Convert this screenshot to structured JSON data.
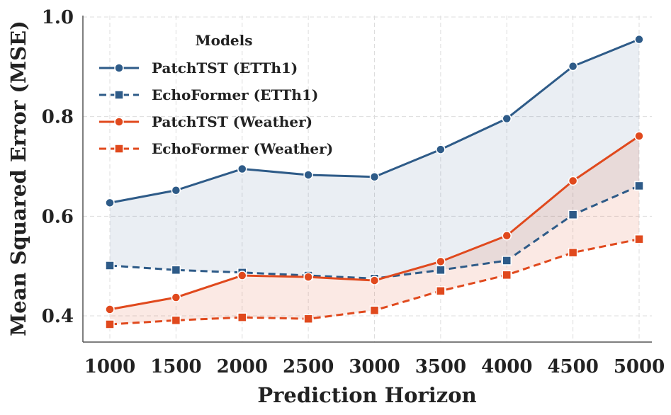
{
  "chart_data": {
    "type": "line",
    "xlabel": "Prediction Horizon",
    "ylabel": "Mean Squared Error (MSE)",
    "x": [
      1000,
      1500,
      2000,
      2500,
      3000,
      3500,
      4000,
      4500,
      5000
    ],
    "x_tick_labels": [
      "1000",
      "1500",
      "2000",
      "2500",
      "3000",
      "3500",
      "4000",
      "4500",
      "5000"
    ],
    "ylim": [
      0.35,
      1.0
    ],
    "y_ticks": [
      0.4,
      0.6,
      0.8,
      1.0
    ],
    "y_tick_labels": [
      "0.4",
      "0.6",
      "0.8",
      "1.0"
    ],
    "grid": true,
    "legend": {
      "title": "Models",
      "placement": "top-left"
    },
    "series": [
      {
        "name": "PatchTST (ETTh1)",
        "values": [
          0.627,
          0.652,
          0.695,
          0.683,
          0.679,
          0.734,
          0.796,
          0.901,
          0.955
        ],
        "color": "#2e5b88",
        "marker": "circle",
        "dashed": false
      },
      {
        "name": "EchoFormer (ETTh1)",
        "values": [
          0.501,
          0.492,
          0.487,
          0.481,
          0.475,
          0.492,
          0.511,
          0.603,
          0.661
        ],
        "color": "#2e5b88",
        "marker": "square",
        "dashed": true
      },
      {
        "name": "PatchTST (Weather)",
        "values": [
          0.413,
          0.437,
          0.481,
          0.478,
          0.471,
          0.509,
          0.561,
          0.671,
          0.761
        ],
        "color": "#e0491d",
        "marker": "circle",
        "dashed": false
      },
      {
        "name": "EchoFormer (Weather)",
        "values": [
          0.383,
          0.391,
          0.397,
          0.394,
          0.411,
          0.45,
          0.482,
          0.527,
          0.554
        ],
        "color": "#e0491d",
        "marker": "square",
        "dashed": true
      }
    ],
    "fills": [
      {
        "between": [
          "PatchTST (ETTh1)",
          "EchoFormer (ETTh1)"
        ],
        "color": "#2e5b88",
        "opacity": 0.1
      },
      {
        "between": [
          "PatchTST (Weather)",
          "EchoFormer (Weather)"
        ],
        "color": "#e0491d",
        "opacity": 0.12
      }
    ]
  }
}
